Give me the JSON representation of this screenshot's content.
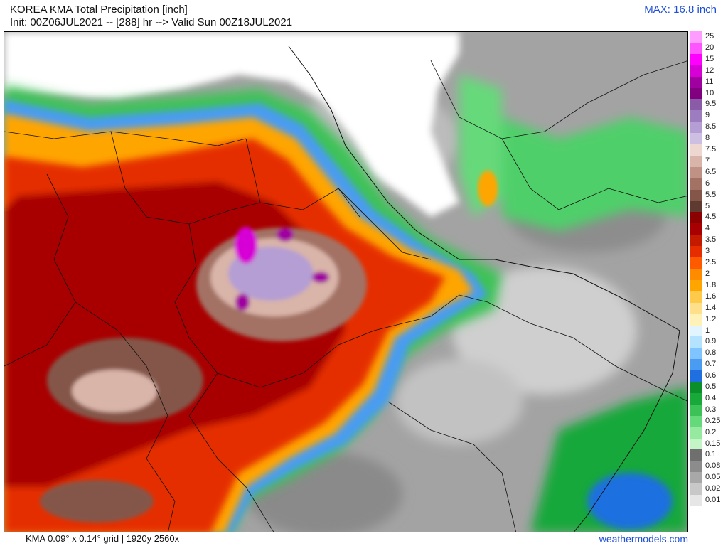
{
  "header": {
    "title": "KOREA KMA Total Precipitation [inch]",
    "subtitle": "Init: 00Z06JUL2021 -- [288] hr --> Valid Sun 00Z18JUL2021",
    "max_label": "MAX: 16.8 inch"
  },
  "legend": {
    "items": [
      {
        "label": "25",
        "color": "#ff9cff"
      },
      {
        "label": "20",
        "color": "#ff55ff"
      },
      {
        "label": "15",
        "color": "#ff00ff"
      },
      {
        "label": "12",
        "color": "#d600d6"
      },
      {
        "label": "11",
        "color": "#a100a1"
      },
      {
        "label": "10",
        "color": "#800080"
      },
      {
        "label": "9.5",
        "color": "#8a5ca8"
      },
      {
        "label": "9",
        "color": "#9e7cc0"
      },
      {
        "label": "8.5",
        "color": "#b59ed3"
      },
      {
        "label": "8",
        "color": "#cdbfe2"
      },
      {
        "label": "7.5",
        "color": "#efd7d1"
      },
      {
        "label": "7",
        "color": "#d9b4a8"
      },
      {
        "label": "6.5",
        "color": "#bf9285"
      },
      {
        "label": "6",
        "color": "#a37265"
      },
      {
        "label": "5.5",
        "color": "#84564a"
      },
      {
        "label": "5",
        "color": "#5e3a30"
      },
      {
        "label": "4.5",
        "color": "#8b0000"
      },
      {
        "label": "4",
        "color": "#a80000"
      },
      {
        "label": "3.5",
        "color": "#c41a00"
      },
      {
        "label": "3",
        "color": "#e52d00"
      },
      {
        "label": "2.5",
        "color": "#ff5a00"
      },
      {
        "label": "2",
        "color": "#ff8c00"
      },
      {
        "label": "1.8",
        "color": "#ffa500"
      },
      {
        "label": "1.6",
        "color": "#ffc94a"
      },
      {
        "label": "1.4",
        "color": "#ffe08a"
      },
      {
        "label": "1.2",
        "color": "#fff2b8"
      },
      {
        "label": "1",
        "color": "#e0f5ff"
      },
      {
        "label": "0.9",
        "color": "#b3e3ff"
      },
      {
        "label": "0.8",
        "color": "#7fc4ff"
      },
      {
        "label": "0.7",
        "color": "#4a9cf2"
      },
      {
        "label": "0.6",
        "color": "#1f6fe0"
      },
      {
        "label": "0.5",
        "color": "#0a8f2a"
      },
      {
        "label": "0.4",
        "color": "#19a83a"
      },
      {
        "label": "0.3",
        "color": "#3cc256"
      },
      {
        "label": "0.25",
        "color": "#66d97a"
      },
      {
        "label": "0.2",
        "color": "#95ea9f"
      },
      {
        "label": "0.15",
        "color": "#c3f5c6"
      },
      {
        "label": "0.1",
        "color": "#6f6f6f"
      },
      {
        "label": "0.08",
        "color": "#8c8c8c"
      },
      {
        "label": "0.05",
        "color": "#a8a8a8"
      },
      {
        "label": "0.02",
        "color": "#c8c8c8"
      },
      {
        "label": "0.01",
        "color": "#e6e6e6"
      }
    ]
  },
  "footer": {
    "grid_info": "KMA 0.09° x 0.14° grid | 1920y 2560x",
    "credit": "weathermodels.com"
  }
}
